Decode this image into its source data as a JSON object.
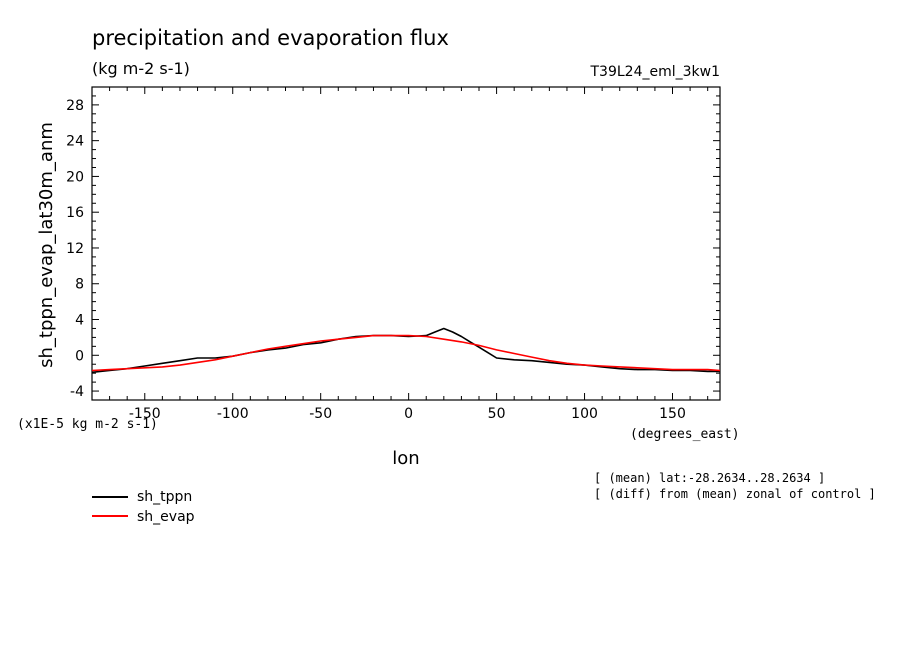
{
  "chart_data": {
    "type": "line",
    "title": "precipitation and evaporation flux",
    "units": "(kg m-2 s-1)",
    "experiment": "T39L24_eml_3kw1",
    "ylabel": "sh_tppn_evap_lat30m_anm",
    "xlabel": "lon",
    "y_scale_note": "(x1E-5 kg m-2 s-1)",
    "x_units": "(degrees_east)",
    "xlim": [
      -180,
      177
    ],
    "ylim": [
      -5,
      30
    ],
    "x_ticks": [
      -150,
      -100,
      -50,
      0,
      50,
      100,
      150
    ],
    "y_ticks": [
      -4,
      0,
      4,
      8,
      12,
      16,
      20,
      24,
      28
    ],
    "grid": false,
    "legend_position": "bottom-left",
    "notes": [
      "[ (mean) lat:-28.2634..28.2634 ]",
      "[ (diff) from (mean) zonal of control ]"
    ],
    "series": [
      {
        "name": "sh_tppn",
        "color": "#000000",
        "x": [
          -180,
          -170,
          -160,
          -150,
          -140,
          -130,
          -120,
          -110,
          -100,
          -90,
          -80,
          -70,
          -60,
          -50,
          -40,
          -30,
          -20,
          -10,
          0,
          10,
          15,
          20,
          25,
          30,
          35,
          40,
          45,
          50,
          60,
          70,
          80,
          90,
          100,
          110,
          120,
          130,
          140,
          150,
          160,
          170,
          177
        ],
        "y": [
          -1.9,
          -1.7,
          -1.5,
          -1.2,
          -0.9,
          -0.6,
          -0.3,
          -0.3,
          -0.1,
          0.3,
          0.6,
          0.8,
          1.2,
          1.4,
          1.8,
          2.1,
          2.2,
          2.2,
          2.1,
          2.2,
          2.6,
          3.0,
          2.6,
          2.1,
          1.5,
          0.9,
          0.3,
          -0.3,
          -0.5,
          -0.6,
          -0.8,
          -1.0,
          -1.1,
          -1.3,
          -1.5,
          -1.6,
          -1.6,
          -1.7,
          -1.7,
          -1.8,
          -1.8
        ]
      },
      {
        "name": "sh_evap",
        "color": "#ff0000",
        "x": [
          -180,
          -170,
          -160,
          -150,
          -140,
          -130,
          -120,
          -110,
          -100,
          -90,
          -80,
          -70,
          -60,
          -50,
          -40,
          -30,
          -20,
          -10,
          0,
          10,
          20,
          30,
          40,
          50,
          60,
          70,
          80,
          90,
          100,
          110,
          120,
          130,
          140,
          150,
          160,
          170,
          177
        ],
        "y": [
          -1.7,
          -1.6,
          -1.5,
          -1.4,
          -1.3,
          -1.1,
          -0.8,
          -0.5,
          -0.1,
          0.3,
          0.7,
          1.0,
          1.3,
          1.6,
          1.8,
          2.0,
          2.2,
          2.2,
          2.2,
          2.1,
          1.8,
          1.5,
          1.1,
          0.6,
          0.2,
          -0.2,
          -0.6,
          -0.9,
          -1.1,
          -1.2,
          -1.3,
          -1.4,
          -1.5,
          -1.6,
          -1.6,
          -1.6,
          -1.7
        ]
      }
    ]
  }
}
